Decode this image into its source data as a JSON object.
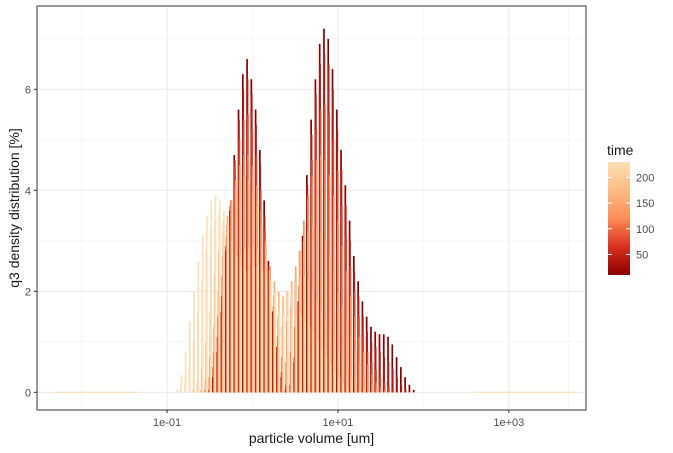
{
  "chart_data": {
    "type": "line",
    "xlabel": "particle volume [um]",
    "ylabel": "q3 density distribution [%]",
    "x_scale": "log10",
    "xlim": [
      0.003,
      8000
    ],
    "ylim": [
      -0.35,
      7.65
    ],
    "x_ticks": [
      {
        "value": 0.1,
        "label": "1e-01"
      },
      {
        "value": 10,
        "label": "1e+01"
      },
      {
        "value": 1000,
        "label": "1e+03"
      }
    ],
    "y_ticks": [
      {
        "value": 0,
        "label": "0"
      },
      {
        "value": 2,
        "label": "2"
      },
      {
        "value": 4,
        "label": "4"
      },
      {
        "value": 6,
        "label": "6"
      }
    ],
    "grid": true,
    "legend": {
      "title": "time",
      "position": "right",
      "type": "colorbar",
      "range": [
        10,
        230
      ],
      "breaks": [
        {
          "value": 50,
          "label": "50"
        },
        {
          "value": 100,
          "label": "100"
        },
        {
          "value": 150,
          "label": "150"
        },
        {
          "value": 200,
          "label": "200"
        }
      ],
      "color_low": "#8b0000",
      "color_high": "#fde0b6"
    },
    "bins_log10": [
      -1.3,
      -1.25,
      -1.2,
      -1.15,
      -1.1,
      -1.05,
      -1.0,
      -0.95,
      -0.9,
      -0.85,
      -0.8,
      -0.75,
      -0.7,
      -0.65,
      -0.6,
      -0.55,
      -0.5,
      -0.45,
      -0.4,
      -0.35,
      -0.3,
      -0.25,
      -0.2,
      -0.15,
      -0.1,
      -0.05,
      0.0,
      0.05,
      0.1,
      0.15,
      0.2,
      0.25,
      0.3,
      0.35,
      0.4,
      0.45,
      0.5,
      0.55,
      0.6,
      0.65,
      0.7,
      0.75,
      0.8,
      0.85,
      0.9,
      0.95,
      1.0,
      1.05,
      1.1,
      1.15,
      1.2,
      1.25,
      1.3,
      1.35,
      1.4,
      1.45,
      1.5,
      1.55,
      1.6,
      1.65,
      1.7,
      1.75,
      1.8,
      1.85,
      1.9,
      1.95,
      2.0,
      2.05,
      2.1,
      2.15,
      2.2,
      2.25,
      2.3,
      2.35,
      2.4,
      2.45,
      2.5,
      2.55
    ],
    "series": [
      {
        "time": 10,
        "values": [
          0.0,
          0.0,
          0.0,
          0.0,
          0.0,
          0.0,
          0.0,
          0.0,
          0.0,
          0.0,
          0.0,
          0.0,
          0.0,
          0.0,
          0.0,
          0.0,
          0.0,
          0.3,
          0.8,
          1.6,
          2.8,
          3.6,
          4.7,
          5.6,
          6.3,
          6.6,
          6.2,
          5.6,
          4.8,
          3.8,
          2.6,
          1.6,
          0.9,
          0.3,
          0.05,
          0.0,
          0.6,
          1.8,
          3.1,
          4.3,
          5.4,
          6.2,
          6.9,
          7.2,
          7.0,
          6.4,
          5.6,
          4.8,
          4.1,
          3.4,
          2.7,
          2.2,
          1.8,
          1.5,
          1.3,
          1.2,
          1.15,
          1.15,
          1.1,
          0.95,
          0.7,
          0.5,
          0.3,
          0.15,
          0.05,
          0.0,
          0.0,
          0.0,
          0.0,
          0.0,
          0.0,
          0.0,
          0.0,
          0.0,
          0.0,
          0.0,
          0.0,
          0.0
        ]
      },
      {
        "time": 40,
        "values": [
          0.0,
          0.0,
          0.0,
          0.0,
          0.0,
          0.0,
          0.0,
          0.0,
          0.0,
          0.0,
          0.0,
          0.0,
          0.0,
          0.0,
          0.0,
          0.0,
          0.05,
          0.5,
          1.1,
          1.9,
          2.9,
          3.7,
          4.6,
          5.4,
          6.0,
          6.2,
          5.9,
          5.3,
          4.5,
          3.5,
          2.5,
          1.6,
          0.9,
          0.4,
          0.15,
          0.15,
          0.7,
          1.8,
          3.0,
          4.1,
          5.1,
          5.9,
          6.5,
          6.7,
          6.5,
          6.0,
          5.2,
          4.4,
          3.7,
          3.0,
          2.4,
          1.9,
          1.5,
          1.2,
          1.0,
          0.9,
          0.8,
          0.7,
          0.6,
          0.45,
          0.3,
          0.15,
          0.05,
          0.0,
          0.0,
          0.0,
          0.0,
          0.0,
          0.0,
          0.0,
          0.0,
          0.0,
          0.0,
          0.0,
          0.0,
          0.0,
          0.0,
          0.0
        ]
      },
      {
        "time": 80,
        "values": [
          0.0,
          0.0,
          0.0,
          0.0,
          0.0,
          0.0,
          0.0,
          0.0,
          0.0,
          0.0,
          0.0,
          0.0,
          0.0,
          0.0,
          0.0,
          0.05,
          0.3,
          0.8,
          1.5,
          2.3,
          3.1,
          3.8,
          4.5,
          5.0,
          5.4,
          5.5,
          5.2,
          4.7,
          4.0,
          3.2,
          2.4,
          1.7,
          1.1,
          0.7,
          0.6,
          0.8,
          1.3,
          2.1,
          3.0,
          3.8,
          4.6,
          5.2,
          5.6,
          5.7,
          5.5,
          5.0,
          4.4,
          3.7,
          3.1,
          2.5,
          2.0,
          1.5,
          1.1,
          0.8,
          0.6,
          0.45,
          0.3,
          0.2,
          0.1,
          0.05,
          0.0,
          0.0,
          0.0,
          0.0,
          0.0,
          0.0,
          0.0,
          0.0,
          0.0,
          0.0,
          0.0,
          0.0,
          0.0,
          0.0,
          0.0,
          0.0,
          0.0,
          0.0
        ]
      },
      {
        "time": 120,
        "values": [
          0.0,
          0.0,
          0.0,
          0.0,
          0.0,
          0.0,
          0.0,
          0.0,
          0.0,
          0.0,
          0.0,
          0.0,
          0.0,
          0.0,
          0.05,
          0.25,
          0.7,
          1.3,
          2.0,
          2.7,
          3.3,
          3.8,
          4.2,
          4.5,
          4.7,
          4.7,
          4.5,
          4.1,
          3.6,
          3.0,
          2.4,
          1.9,
          1.5,
          1.3,
          1.4,
          1.7,
          2.2,
          2.8,
          3.4,
          3.9,
          4.3,
          4.6,
          4.7,
          4.6,
          4.3,
          3.9,
          3.4,
          2.9,
          2.4,
          1.9,
          1.5,
          1.1,
          0.8,
          0.55,
          0.35,
          0.2,
          0.1,
          0.05,
          0.0,
          0.0,
          0.0,
          0.0,
          0.0,
          0.0,
          0.0,
          0.0,
          0.0,
          0.0,
          0.0,
          0.0,
          0.0,
          0.0,
          0.0,
          0.0,
          0.0,
          0.0,
          0.0,
          0.0
        ]
      },
      {
        "time": 160,
        "values": [
          0.0,
          0.0,
          0.0,
          0.0,
          0.0,
          0.0,
          0.0,
          0.0,
          0.0,
          0.0,
          0.0,
          0.0,
          0.05,
          0.2,
          0.5,
          1.0,
          1.6,
          2.3,
          2.8,
          3.2,
          3.5,
          3.8,
          4.0,
          4.2,
          4.3,
          4.2,
          4.0,
          3.7,
          3.3,
          2.9,
          2.5,
          2.2,
          2.0,
          1.9,
          2.0,
          2.2,
          2.5,
          2.8,
          3.0,
          3.2,
          3.3,
          3.3,
          3.2,
          3.0,
          2.7,
          2.4,
          2.0,
          1.7,
          1.4,
          1.1,
          0.85,
          0.6,
          0.4,
          0.25,
          0.15,
          0.05,
          0.0,
          0.0,
          0.0,
          0.0,
          0.0,
          0.0,
          0.0,
          0.0,
          0.0,
          0.0,
          0.0,
          0.0,
          0.0,
          0.0,
          0.0,
          0.0,
          0.0,
          0.0,
          0.0,
          0.0,
          0.0,
          0.0
        ]
      },
      {
        "time": 200,
        "values": [
          0.0,
          0.0,
          0.0,
          0.0,
          0.0,
          0.0,
          0.0,
          0.0,
          0.0,
          0.05,
          0.2,
          0.5,
          1.0,
          1.6,
          2.2,
          2.8,
          3.2,
          3.4,
          3.5,
          3.4,
          3.2,
          3.0,
          2.8,
          2.7,
          2.8,
          2.9,
          2.9,
          2.8,
          2.6,
          2.4,
          2.2,
          2.0,
          1.9,
          1.9,
          2.0,
          2.1,
          2.2,
          2.3,
          2.3,
          2.2,
          2.0,
          1.8,
          1.6,
          1.4,
          1.2,
          1.0,
          0.8,
          0.6,
          0.45,
          0.3,
          0.2,
          0.1,
          0.05,
          0.0,
          0.0,
          0.0,
          0.0,
          0.0,
          0.0,
          0.0,
          0.0,
          0.0,
          0.0,
          0.0,
          0.0,
          0.0,
          0.0,
          0.0,
          0.0,
          0.0,
          0.0,
          0.0,
          0.0,
          0.0,
          0.0,
          0.0,
          0.0,
          0.0
        ]
      },
      {
        "time": 230,
        "values": [
          0.0,
          0.0,
          0.0,
          0.0,
          0.0,
          0.0,
          0.0,
          0.0,
          0.05,
          0.35,
          0.8,
          1.4,
          2.0,
          2.6,
          3.1,
          3.5,
          3.8,
          3.9,
          3.8,
          3.6,
          3.3,
          3.0,
          2.7,
          2.5,
          2.4,
          2.4,
          2.5,
          2.5,
          2.4,
          2.2,
          2.0,
          1.8,
          1.6,
          1.5,
          1.5,
          1.5,
          1.5,
          1.5,
          1.4,
          1.3,
          1.2,
          1.0,
          0.9,
          0.7,
          0.55,
          0.4,
          0.3,
          0.2,
          0.1,
          0.05,
          0.0,
          0.0,
          0.0,
          0.0,
          0.0,
          0.0,
          0.0,
          0.0,
          0.0,
          0.0,
          0.0,
          0.0,
          0.0,
          0.0,
          0.0,
          0.0,
          0.0,
          0.0,
          0.0,
          0.0,
          0.0,
          0.0,
          0.0,
          0.0,
          0.0,
          0.0,
          0.0,
          0.0
        ]
      }
    ]
  }
}
